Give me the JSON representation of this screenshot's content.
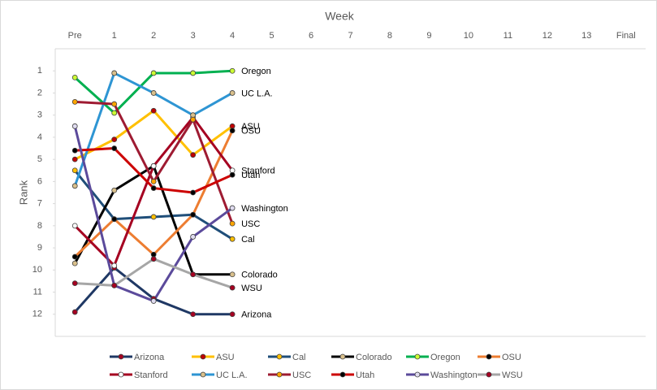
{
  "chart_data": {
    "type": "line",
    "x_title": "Week",
    "y_title": "Rank",
    "categories": [
      "Pre",
      "1",
      "2",
      "3",
      "4",
      "5",
      "6",
      "7",
      "8",
      "9",
      "10",
      "11",
      "12",
      "13",
      "Final"
    ],
    "ylim": [
      0,
      13
    ],
    "y_inverted": true,
    "yticks": [
      1,
      2,
      3,
      4,
      5,
      6,
      7,
      8,
      9,
      10,
      11,
      12
    ],
    "legend": "bottom",
    "series": [
      {
        "name": "Arizona",
        "color": "#1f3864",
        "marker_color": "#a50021",
        "values": [
          11.9,
          9.9,
          11.3,
          12,
          12,
          null,
          null,
          null,
          null,
          null,
          null,
          null,
          null,
          null,
          null
        ]
      },
      {
        "name": "ASU",
        "color": "#ffc000",
        "marker_color": "#c00000",
        "values": [
          5.0,
          4.1,
          2.8,
          4.8,
          3.5,
          null,
          null,
          null,
          null,
          null,
          null,
          null,
          null,
          null,
          null
        ]
      },
      {
        "name": "Cal",
        "color": "#1f4e79",
        "marker_color": "#ffc000",
        "values": [
          5.5,
          7.7,
          7.6,
          7.5,
          8.6,
          null,
          null,
          null,
          null,
          null,
          null,
          null,
          null,
          null,
          null
        ]
      },
      {
        "name": "Colorado",
        "color": "#000000",
        "marker_color": "#d9c08c",
        "values": [
          9.7,
          6.4,
          5.3,
          10.2,
          10.2,
          null,
          null,
          null,
          null,
          null,
          null,
          null,
          null,
          null,
          null
        ]
      },
      {
        "name": "Oregon",
        "color": "#00b050",
        "marker_color": "#ccff33",
        "values": [
          1.3,
          2.9,
          1.1,
          1.1,
          1.0,
          null,
          null,
          null,
          null,
          null,
          null,
          null,
          null,
          null,
          null
        ]
      },
      {
        "name": "OSU",
        "color": "#ed7d31",
        "marker_color": "#000000",
        "values": [
          9.4,
          7.7,
          9.3,
          7.5,
          3.7,
          null,
          null,
          null,
          null,
          null,
          null,
          null,
          null,
          null,
          null
        ]
      },
      {
        "name": "Stanford",
        "color": "#a50021",
        "marker_color": "#ffffff",
        "values": [
          8.0,
          9.8,
          5.3,
          3.1,
          5.5,
          null,
          null,
          null,
          null,
          null,
          null,
          null,
          null,
          null,
          null
        ]
      },
      {
        "name": "UC L.A.",
        "color": "#2e95d3",
        "marker_color": "#d9c08c",
        "values": [
          6.2,
          1.1,
          2.0,
          3.0,
          2.0,
          null,
          null,
          null,
          null,
          null,
          null,
          null,
          null,
          null,
          null
        ]
      },
      {
        "name": "USC",
        "color": "#9e1b32",
        "marker_color": "#ffa500",
        "values": [
          2.4,
          2.5,
          6.0,
          3.2,
          7.9,
          null,
          null,
          null,
          null,
          null,
          null,
          null,
          null,
          null,
          null
        ]
      },
      {
        "name": "Utah",
        "color": "#cc0000",
        "marker_color": "#000000",
        "values": [
          4.6,
          4.5,
          6.3,
          6.5,
          5.7,
          null,
          null,
          null,
          null,
          null,
          null,
          null,
          null,
          null,
          null
        ]
      },
      {
        "name": "Washington",
        "color": "#5b4a9b",
        "marker_color": "#e0dcf0",
        "values": [
          3.5,
          10.7,
          11.4,
          8.5,
          7.2,
          null,
          null,
          null,
          null,
          null,
          null,
          null,
          null,
          null,
          null
        ]
      },
      {
        "name": "WSU",
        "color": "#a6a6a6",
        "marker_color": "#a50021",
        "values": [
          10.6,
          10.7,
          9.5,
          10.2,
          10.8,
          null,
          null,
          null,
          null,
          null,
          null,
          null,
          null,
          null,
          null
        ]
      }
    ]
  }
}
